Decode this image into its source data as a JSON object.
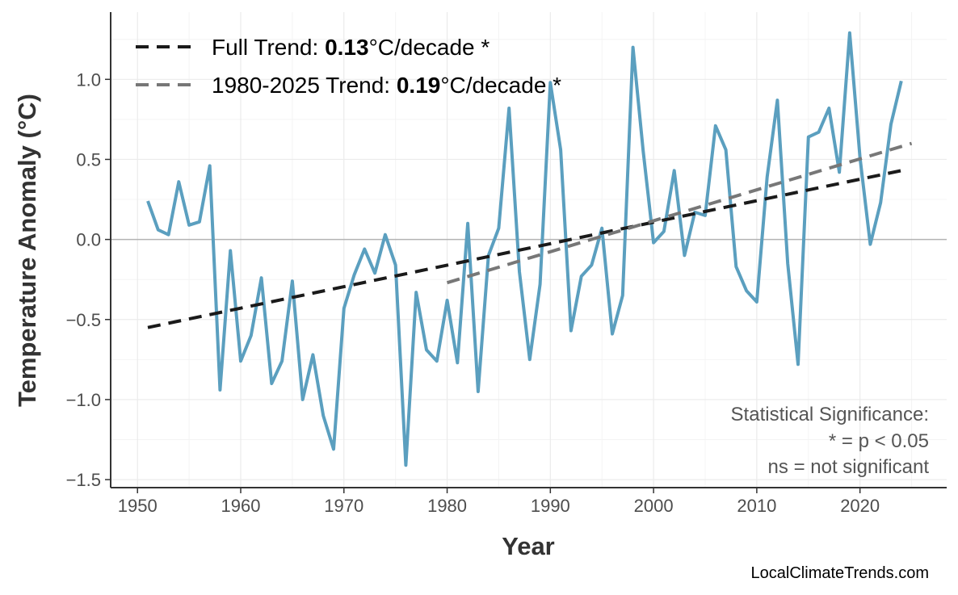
{
  "chart_data": {
    "type": "line",
    "title": "",
    "xlabel": "Year",
    "ylabel": "Temperature Anomaly (°C)",
    "xlim": [
      1947.4,
      2028.4
    ],
    "ylim": [
      -1.55,
      1.42
    ],
    "x_ticks": [
      1950,
      1960,
      1970,
      1980,
      1990,
      2000,
      2010,
      2020
    ],
    "y_ticks": [
      -1.5,
      -1.0,
      -0.5,
      0.0,
      0.5,
      1.0
    ],
    "y_tick_labels": [
      "−1.5",
      "−1.0",
      "−0.5",
      "0.0",
      "0.5",
      "1.0"
    ],
    "grid": true,
    "zero_line": true,
    "series": [
      {
        "color": "#5b9fbf",
        "x": [
          1951,
          1952,
          1953,
          1954,
          1955,
          1956,
          1957,
          1958,
          1959,
          1960,
          1961,
          1962,
          1963,
          1964,
          1965,
          1966,
          1967,
          1968,
          1969,
          1970,
          1971,
          1972,
          1973,
          1974,
          1975,
          1976,
          1977,
          1978,
          1979,
          1980,
          1981,
          1982,
          1983,
          1984,
          1985,
          1986,
          1987,
          1988,
          1989,
          1990,
          1991,
          1992,
          1993,
          1994,
          1995,
          1996,
          1997,
          1998,
          1999,
          2000,
          2001,
          2002,
          2003,
          2004,
          2005,
          2006,
          2007,
          2008,
          2009,
          2010,
          2011,
          2012,
          2013,
          2014,
          2015,
          2016,
          2017,
          2018,
          2019,
          2020,
          2021,
          2022,
          2023,
          2024
        ],
        "values": [
          0.24,
          0.06,
          0.03,
          0.36,
          0.09,
          0.11,
          0.46,
          -0.94,
          -0.07,
          -0.76,
          -0.6,
          -0.24,
          -0.9,
          -0.76,
          -0.26,
          -1.0,
          -0.72,
          -1.1,
          -1.31,
          -0.43,
          -0.22,
          -0.06,
          -0.21,
          0.03,
          -0.16,
          -1.41,
          -0.33,
          -0.69,
          -0.76,
          -0.38,
          -0.77,
          0.1,
          -0.95,
          -0.1,
          0.07,
          0.82,
          -0.2,
          -0.75,
          -0.28,
          0.98,
          0.56,
          -0.57,
          -0.23,
          -0.16,
          0.07,
          -0.59,
          -0.35,
          1.2,
          0.55,
          -0.02,
          0.05,
          0.43,
          -0.1,
          0.17,
          0.15,
          0.71,
          0.56,
          -0.17,
          -0.32,
          -0.39,
          0.39,
          0.87,
          -0.15,
          -0.78,
          0.64,
          0.67,
          0.82,
          0.42,
          1.29,
          0.51,
          -0.03,
          0.23,
          0.72,
          0.99
        ]
      }
    ],
    "trends": [
      {
        "label_prefix": "Full Trend: ",
        "rate": "0.13",
        "label_suffix": "°C/decade *",
        "color": "#1a1a1a",
        "x": [
          1951,
          2024
        ],
        "y": [
          -0.55,
          0.43
        ]
      },
      {
        "label_prefix": "1980-2025 Trend: ",
        "rate": "0.19",
        "label_suffix": "°C/decade *",
        "color": "#777777",
        "x": [
          1980,
          2025
        ],
        "y": [
          -0.27,
          0.6
        ]
      }
    ],
    "legend_position": "top-left",
    "annotation": [
      "Statistical Significance:",
      "* = p < 0.05",
      "ns = not significant"
    ]
  },
  "source": "LocalClimateTrends.com"
}
